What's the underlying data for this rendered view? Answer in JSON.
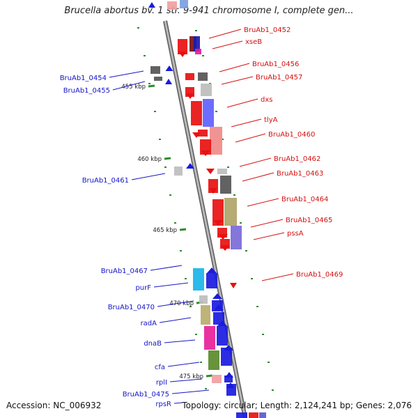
{
  "title": "Brucella abortus bv. 1 str. 9-941 chromosome I, complete gen...",
  "footer": {
    "accession": "Accession: NC_006932",
    "topology": "Topology: circular; Length: 2,124,241 bp; Genes: 2,076"
  },
  "colors": {
    "backbone": "#8c8c8c",
    "forward_label": "#1515c8",
    "reverse_label": "#d41010",
    "tick": "#2e8b2e"
  },
  "ticks": [
    "455 kbp",
    "460 kbp",
    "465 kbp",
    "470 kbp",
    "475 kbp"
  ],
  "forward_genes": [
    "BruAb1_0454",
    "BruAb1_0455",
    "BruAb1_0461",
    "BruAb1_0467",
    "purF",
    "BruAb1_0470",
    "radA",
    "dnaB",
    "cfa",
    "rplI",
    "BruAb1_0475",
    "rpsR"
  ],
  "reverse_genes": [
    "BruAb1_0452",
    "xseB",
    "BruAb1_0456",
    "BruAb1_0457",
    "dxs",
    "tlyA",
    "BruAb1_0460",
    "BruAb1_0462",
    "BruAb1_0463",
    "BruAb1_0464",
    "BruAb1_0465",
    "pssA",
    "BruAb1_0469"
  ]
}
